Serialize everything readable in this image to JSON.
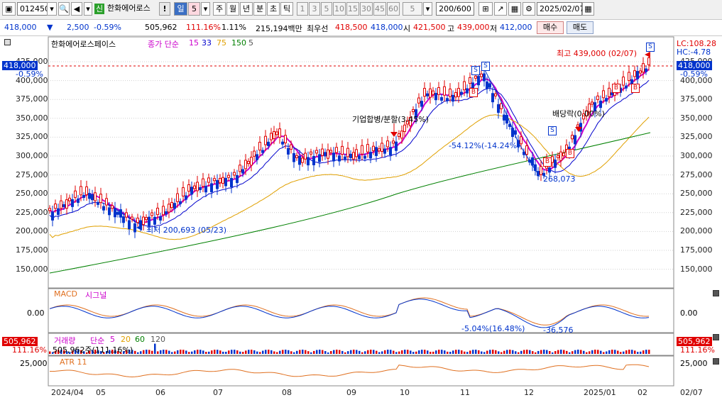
{
  "toolbar": {
    "code": "012450",
    "stock_tag": "신",
    "stock_name": "한화에어로스",
    "exclaim": "!",
    "period_day": "일",
    "period_count": "5",
    "periods": [
      "주",
      "월",
      "년",
      "분",
      "초",
      "틱"
    ],
    "minutes": [
      "1",
      "3",
      "5",
      "10",
      "15",
      "30",
      "45",
      "60"
    ],
    "custom_min": "5",
    "bars": "200/600",
    "date": "2025/02/07"
  },
  "infobar": {
    "price": "418,000",
    "arrow": "▼",
    "change": "2,500",
    "change_pct": "-0.59%",
    "volume": "505,962",
    "volume_ratio": "111.16%",
    "turnover_pct": "1.11%",
    "amount": "215,194백만",
    "best_ask_label": "최우선",
    "best_ask": "418,500",
    "best_bid": "418,000",
    "open_label": "시",
    "open": "421,500",
    "high_label": "고",
    "high": "439,000",
    "low_label": "저",
    "low": "412,000",
    "buy_btn": "매수",
    "sell_btn": "매도"
  },
  "price_panel": {
    "legend_name": "한화에어로스페이스",
    "legend_close": "종가 단순",
    "ma": [
      {
        "value": "15",
        "color": "#cc00cc"
      },
      {
        "value": "33",
        "color": "#0000cc"
      },
      {
        "value": "75",
        "color": "#e0a000"
      },
      {
        "value": "150",
        "color": "#008000"
      },
      {
        "value": "5",
        "color": "#555555"
      }
    ],
    "y_ticks": [
      "425,000",
      "400,000",
      "375,000",
      "350,000",
      "325,000",
      "300,000",
      "275,000",
      "250,000",
      "225,000",
      "200,000",
      "175,000",
      "150,000"
    ],
    "current_tag": "418,000",
    "current_pct": "-0.59%",
    "lc": "LC:108.28",
    "hc": "HC:-4.78",
    "ann_high": "최고 439,000 (02/07)",
    "ann_low": "최저 200,693 (05/23)",
    "ann_merger": "기업합병/분할(3.45%)",
    "ann_dividend": "배당락(0.00%)",
    "ann_drop": "-54.12%(-14.24%)",
    "ann_trough": "268,073",
    "signals": [
      "B",
      "S"
    ]
  },
  "macd_panel": {
    "title": "MACD",
    "signal": "시그널",
    "zero": "0.00",
    "ann_low": "-5.04%(16.48%)",
    "ann_val": "-36,576"
  },
  "volume_panel": {
    "title": "거래량",
    "simple": "단순",
    "ma": [
      {
        "value": "5",
        "color": "#cc00cc"
      },
      {
        "value": "20",
        "color": "#e0a000"
      },
      {
        "value": "60",
        "color": "#008000"
      },
      {
        "value": "120",
        "color": "#555555"
      }
    ],
    "vol_tag": "505,962",
    "vol_pct": "111.16%",
    "vol_note": "505,962주(111.16%)"
  },
  "atr_panel": {
    "title": "ATR 11",
    "tick": "25,000"
  },
  "x_axis": [
    "2024/04",
    "05",
    "06",
    "07",
    "08",
    "09",
    "10",
    "11",
    "12",
    "2025/01",
    "02",
    "02/07"
  ],
  "colors": {
    "up": "#e00000",
    "down": "#0033cc",
    "grid": "#d0d0d0"
  }
}
